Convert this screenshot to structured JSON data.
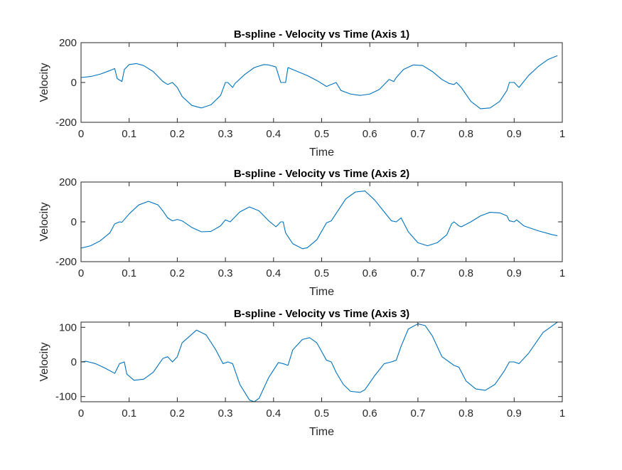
{
  "figure": {
    "background": "#ffffff",
    "line_color": "#0072bd",
    "axes_color": "#262626"
  },
  "chart_data": [
    {
      "type": "line",
      "title": "B-spline - Velocity vs Time (Axis 1)",
      "xlabel": "Time",
      "ylabel": "Velocity",
      "xlim": [
        0,
        1
      ],
      "ylim": [
        -200,
        200
      ],
      "xticks": [
        0,
        0.1,
        0.2,
        0.3,
        0.4,
        0.5,
        0.6,
        0.7,
        0.8,
        0.9,
        1
      ],
      "xtick_labels": [
        "0",
        "0.1",
        "0.2",
        "0.3",
        "0.4",
        "0.5",
        "0.6",
        "0.7",
        "0.8",
        "0.9",
        "1"
      ],
      "yticks": [
        -200,
        0,
        200
      ],
      "ytick_labels": [
        "-200",
        "0",
        "200"
      ],
      "grid": false,
      "series": [
        {
          "x": [
            0,
            0.02,
            0.04,
            0.06,
            0.07,
            0.075,
            0.085,
            0.09,
            0.1,
            0.115,
            0.13,
            0.15,
            0.17,
            0.18,
            0.19,
            0.2,
            0.21,
            0.23,
            0.25,
            0.27,
            0.29,
            0.3,
            0.305,
            0.315,
            0.32,
            0.34,
            0.36,
            0.38,
            0.39,
            0.405,
            0.415,
            0.425,
            0.43,
            0.45,
            0.47,
            0.49,
            0.51,
            0.52,
            0.53,
            0.54,
            0.56,
            0.58,
            0.6,
            0.62,
            0.64,
            0.65,
            0.655,
            0.67,
            0.69,
            0.71,
            0.73,
            0.75,
            0.765,
            0.775,
            0.78,
            0.79,
            0.81,
            0.83,
            0.85,
            0.87,
            0.885,
            0.89,
            0.9,
            0.91,
            0.93,
            0.95,
            0.97,
            0.99
          ],
          "y": [
            25,
            30,
            42,
            60,
            70,
            20,
            5,
            65,
            90,
            95,
            85,
            55,
            5,
            -10,
            0,
            -25,
            -70,
            -115,
            -128,
            -112,
            -65,
            0,
            0,
            -25,
            -5,
            40,
            75,
            90,
            88,
            78,
            0,
            0,
            75,
            55,
            35,
            10,
            -20,
            -10,
            0,
            -40,
            -58,
            -65,
            -58,
            -35,
            15,
            5,
            25,
            65,
            88,
            85,
            55,
            15,
            -5,
            -10,
            0,
            -25,
            -95,
            -132,
            -128,
            -95,
            -40,
            0,
            0,
            -25,
            35,
            80,
            115,
            135
          ]
        }
      ]
    },
    {
      "type": "line",
      "title": "B-spline - Velocity vs Time (Axis 2)",
      "xlabel": "Time",
      "ylabel": "Velocity",
      "xlim": [
        0,
        1
      ],
      "ylim": [
        -200,
        200
      ],
      "xticks": [
        0,
        0.1,
        0.2,
        0.3,
        0.4,
        0.5,
        0.6,
        0.7,
        0.8,
        0.9,
        1
      ],
      "xtick_labels": [
        "0",
        "0.1",
        "0.2",
        "0.3",
        "0.4",
        "0.5",
        "0.6",
        "0.7",
        "0.8",
        "0.9",
        "1"
      ],
      "yticks": [
        -200,
        0,
        200
      ],
      "ytick_labels": [
        "-200",
        "0",
        "200"
      ],
      "grid": false,
      "series": [
        {
          "x": [
            0,
            0.02,
            0.04,
            0.06,
            0.07,
            0.08,
            0.085,
            0.1,
            0.12,
            0.14,
            0.16,
            0.17,
            0.18,
            0.19,
            0.2,
            0.21,
            0.23,
            0.25,
            0.27,
            0.29,
            0.3,
            0.31,
            0.33,
            0.35,
            0.37,
            0.39,
            0.405,
            0.415,
            0.42,
            0.425,
            0.44,
            0.46,
            0.47,
            0.49,
            0.51,
            0.52,
            0.535,
            0.55,
            0.57,
            0.59,
            0.61,
            0.63,
            0.645,
            0.655,
            0.665,
            0.68,
            0.7,
            0.72,
            0.74,
            0.76,
            0.77,
            0.775,
            0.785,
            0.79,
            0.81,
            0.83,
            0.85,
            0.87,
            0.885,
            0.89,
            0.9,
            0.905,
            0.92,
            0.95,
            0.98,
            0.99
          ],
          "y": [
            -132,
            -120,
            -95,
            -55,
            -10,
            0,
            -2,
            40,
            85,
            103,
            85,
            55,
            20,
            5,
            12,
            5,
            -28,
            -50,
            -48,
            -20,
            10,
            0,
            50,
            75,
            55,
            5,
            -25,
            0,
            0,
            -55,
            -110,
            -135,
            -130,
            -90,
            -5,
            5,
            60,
            115,
            150,
            155,
            110,
            50,
            5,
            0,
            20,
            -50,
            -105,
            -120,
            -105,
            -65,
            -10,
            0,
            -20,
            -25,
            0,
            30,
            48,
            45,
            30,
            5,
            0,
            10,
            -20,
            -45,
            -65,
            -70
          ]
        }
      ]
    },
    {
      "type": "line",
      "title": "B-spline - Velocity vs Time (Axis 3)",
      "xlabel": "Time",
      "ylabel": "Velocity",
      "xlim": [
        0,
        1
      ],
      "ylim": [
        -115,
        115
      ],
      "xticks": [
        0,
        0.1,
        0.2,
        0.3,
        0.4,
        0.5,
        0.6,
        0.7,
        0.8,
        0.9,
        1
      ],
      "xtick_labels": [
        "0",
        "0.1",
        "0.2",
        "0.3",
        "0.4",
        "0.5",
        "0.6",
        "0.7",
        "0.8",
        "0.9",
        "1"
      ],
      "yticks": [
        -100,
        0,
        100
      ],
      "ytick_labels": [
        "-100",
        "0",
        "100"
      ],
      "grid": false,
      "series": [
        {
          "x": [
            0,
            0.01,
            0.03,
            0.05,
            0.07,
            0.08,
            0.09,
            0.095,
            0.11,
            0.13,
            0.15,
            0.17,
            0.18,
            0.19,
            0.2,
            0.21,
            0.24,
            0.26,
            0.28,
            0.295,
            0.305,
            0.315,
            0.33,
            0.35,
            0.36,
            0.37,
            0.39,
            0.41,
            0.42,
            0.43,
            0.44,
            0.46,
            0.475,
            0.49,
            0.51,
            0.52,
            0.53,
            0.545,
            0.56,
            0.58,
            0.59,
            0.61,
            0.63,
            0.645,
            0.655,
            0.665,
            0.68,
            0.7,
            0.715,
            0.73,
            0.75,
            0.765,
            0.775,
            0.785,
            0.8,
            0.82,
            0.84,
            0.86,
            0.88,
            0.89,
            0.9,
            0.91,
            0.93,
            0.96,
            0.99
          ],
          "y": [
            0,
            2,
            -5,
            -18,
            -33,
            -5,
            0,
            -35,
            -53,
            -50,
            -30,
            10,
            15,
            0,
            15,
            55,
            92,
            78,
            35,
            -5,
            0,
            -5,
            -65,
            -110,
            -115,
            -105,
            -45,
            -2,
            -5,
            -10,
            35,
            65,
            70,
            55,
            5,
            0,
            -30,
            -65,
            -85,
            -88,
            -80,
            -40,
            -5,
            0,
            5,
            45,
            95,
            110,
            105,
            75,
            15,
            0,
            -10,
            -15,
            -55,
            -78,
            -82,
            -65,
            -25,
            0,
            0,
            -5,
            25,
            85,
            115
          ]
        }
      ]
    }
  ]
}
